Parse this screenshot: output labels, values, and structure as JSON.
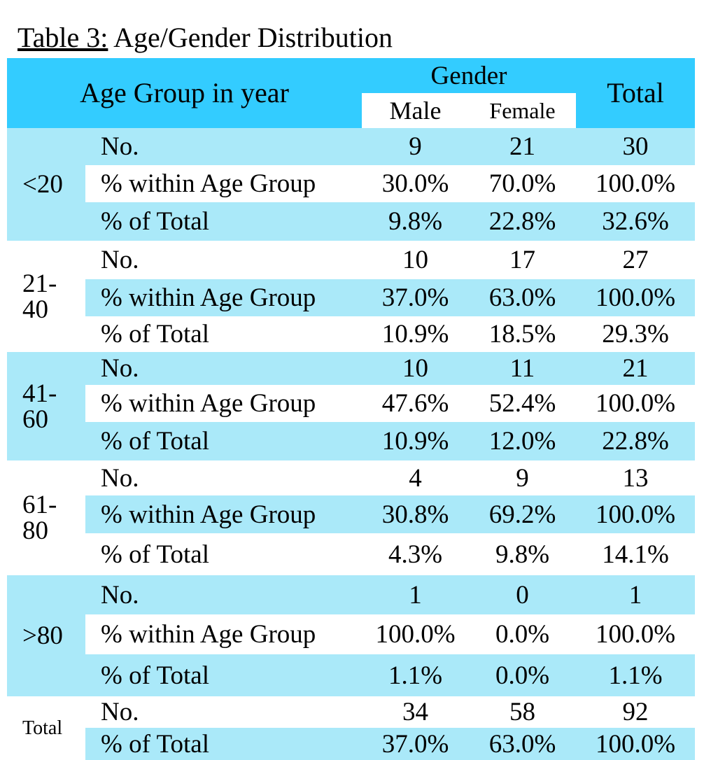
{
  "caption": {
    "label": "Table 3:",
    "text": " Age/Gender Distribution"
  },
  "header": {
    "age_group": "Age Group in year",
    "gender": "Gender",
    "male": "Male",
    "female": "Female",
    "total": "Total"
  },
  "groups": [
    {
      "age": "<20",
      "rows": [
        {
          "label": "No.",
          "male": "9",
          "female": "21",
          "total": "30"
        },
        {
          "label": "%  within Age Group",
          "male": "30.0%",
          "female": "70.0%",
          "total": "100.0%"
        },
        {
          "label": "%  of  Total",
          "male": "9.8%",
          "female": "22.8%",
          "total": "32.6%"
        }
      ]
    },
    {
      "age": "21-\n40",
      "rows": [
        {
          "label": "No.",
          "male": "10",
          "female": "17",
          "total": "27"
        },
        {
          "label": "%  within Age Group",
          "male": "37.0%",
          "female": "63.0%",
          "total": "100.0%"
        },
        {
          "label": "%  of  Total",
          "male": "10.9%",
          "female": "18.5%",
          "total": "29.3%"
        }
      ]
    },
    {
      "age": "41-\n60",
      "rows": [
        {
          "label": "No.",
          "male": "10",
          "female": "11",
          "total": "21"
        },
        {
          "label": "% within Age Group",
          "male": "47.6%",
          "female": "52.4%",
          "total": "100.0%"
        },
        {
          "label": "%  of  Total",
          "male": "10.9%",
          "female": "12.0%",
          "total": "22.8%"
        }
      ]
    },
    {
      "age": "61-\n80",
      "rows": [
        {
          "label": "No.",
          "male": "4",
          "female": "9",
          "total": "13"
        },
        {
          "label": "% within Age Group",
          "male": "30.8%",
          "female": "69.2%",
          "total": "100.0%"
        },
        {
          "label": "%  of  Total",
          "male": "4.3%",
          "female": "9.8%",
          "total": "14.1%"
        }
      ]
    },
    {
      "age": ">80",
      "rows": [
        {
          "label": "No.",
          "male": "1",
          "female": "0",
          "total": "1"
        },
        {
          "label": "% within Age Group",
          "male": "100.0%",
          "female": "0.0%",
          "total": "100.0%"
        },
        {
          "label": "%  of  Total",
          "male": "1.1%",
          "female": "0.0%",
          "total": "1.1%"
        }
      ]
    },
    {
      "age": "Total",
      "rows": [
        {
          "label": "No.",
          "male": "34",
          "female": "58",
          "total": "92"
        },
        {
          "label": "% of Total",
          "male": "37.0%",
          "female": "63.0%",
          "total": "100.0%"
        }
      ]
    }
  ]
}
